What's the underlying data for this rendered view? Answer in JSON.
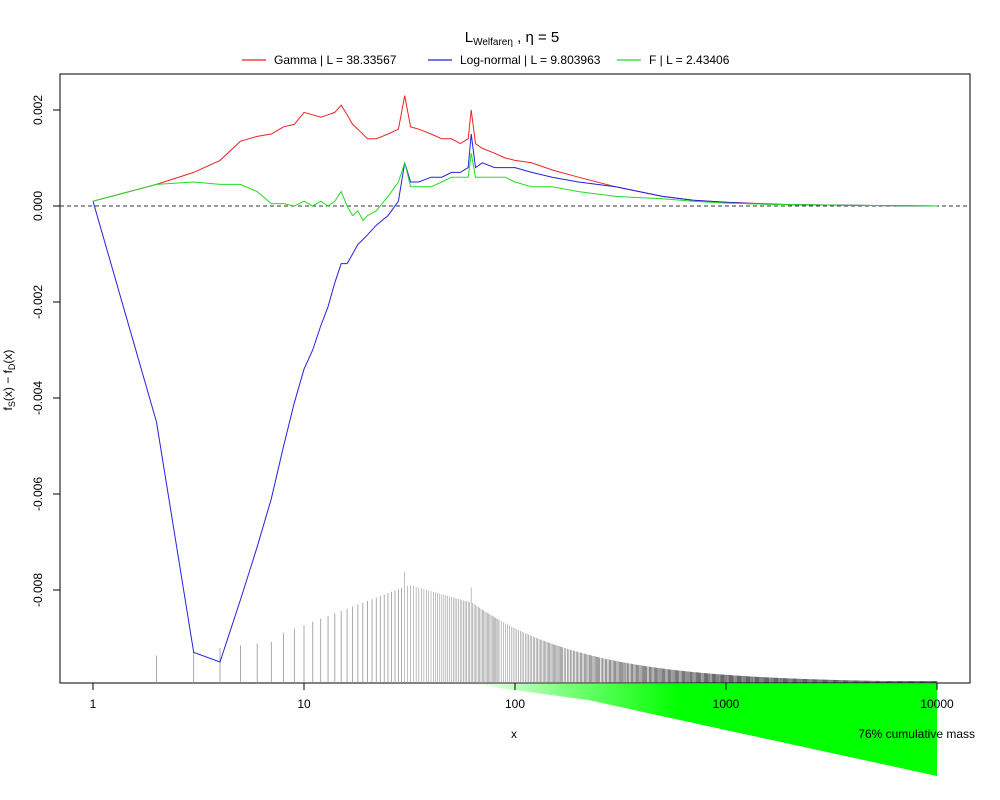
{
  "chart_data": {
    "type": "line",
    "title": "LWelfareη , η = 5",
    "title_main": "L",
    "title_sub": "Welfareη",
    "title_rest": " , η = 5",
    "xlabel": "x",
    "ylabel": "fS(x) − fD(x)",
    "ylabel_f1": "f",
    "ylabel_s1": "S",
    "ylabel_m": "(x) − f",
    "ylabel_s2": "D",
    "ylabel_e": "(x)",
    "x_scale": "log",
    "xlim": [
      1,
      10000
    ],
    "ylim": [
      -0.0099,
      0.0027
    ],
    "x_ticks": [
      1,
      10,
      100,
      1000,
      10000
    ],
    "x_tick_labels": [
      "1",
      "10",
      "100",
      "1000",
      "10000"
    ],
    "y_ticks": [
      -0.008,
      -0.006,
      -0.004,
      -0.002,
      0.0,
      0.002
    ],
    "y_tick_labels": [
      "-0.008",
      "-0.006",
      "-0.004",
      "-0.002",
      "0.000",
      "0.002"
    ],
    "reference_line": {
      "y": 0,
      "style": "dashed",
      "color": "#333333"
    },
    "legend_position": "top",
    "series": [
      {
        "name": "Gamma | L = 38.33567",
        "color": "#ee2222",
        "x": [
          1,
          2,
          3,
          4,
          5,
          6,
          7,
          8,
          9,
          10,
          11,
          12,
          13,
          14,
          15,
          16,
          17,
          18,
          20,
          22,
          25,
          28,
          30,
          32,
          35,
          40,
          45,
          50,
          55,
          60,
          62,
          65,
          70,
          80,
          90,
          100,
          120,
          150,
          200,
          300,
          500,
          700,
          1000,
          1500,
          2000,
          3000,
          5000,
          7000,
          10000
        ],
        "y": [
          0.0001,
          0.00045,
          0.0007,
          0.00095,
          0.00135,
          0.00145,
          0.0015,
          0.00165,
          0.0017,
          0.00195,
          0.0019,
          0.00185,
          0.0019,
          0.00195,
          0.0021,
          0.0019,
          0.0017,
          0.0016,
          0.0014,
          0.0014,
          0.0015,
          0.0016,
          0.0023,
          0.00165,
          0.0016,
          0.0015,
          0.0014,
          0.0014,
          0.0013,
          0.0014,
          0.002,
          0.0013,
          0.0012,
          0.0011,
          0.001,
          0.00095,
          0.0009,
          0.00075,
          0.0006,
          0.0004,
          0.0002,
          0.00012,
          8e-05,
          5e-05,
          3e-05,
          2e-05,
          1e-05,
          5e-06,
          0.0
        ]
      },
      {
        "name": "Log-normal | L = 9.803963",
        "color": "#2222dd",
        "x": [
          1,
          2,
          3,
          4,
          5,
          6,
          7,
          8,
          9,
          10,
          11,
          12,
          13,
          14,
          15,
          16,
          17,
          18,
          19,
          20,
          22,
          25,
          28,
          30,
          32,
          35,
          40,
          45,
          50,
          55,
          60,
          62,
          65,
          70,
          80,
          90,
          100,
          120,
          150,
          200,
          300,
          500,
          700,
          1000,
          1500,
          2000,
          3000,
          5000,
          7000,
          10000
        ],
        "y": [
          0.0001,
          -0.0045,
          -0.0093,
          -0.0095,
          -0.0082,
          -0.0071,
          -0.0061,
          -0.005,
          -0.0041,
          -0.0034,
          -0.003,
          -0.0025,
          -0.0021,
          -0.0016,
          -0.0012,
          -0.0012,
          -0.001,
          -0.0008,
          -0.0007,
          -0.0006,
          -0.0004,
          -0.0002,
          0.0001,
          0.0009,
          0.0005,
          0.0005,
          0.0006,
          0.0006,
          0.0007,
          0.0007,
          0.0008,
          0.0015,
          0.0008,
          0.0009,
          0.0008,
          0.0008,
          0.0008,
          0.0007,
          0.0006,
          0.0005,
          0.0004,
          0.0002,
          0.00012,
          8e-05,
          4e-05,
          3e-05,
          2e-05,
          1e-05,
          5e-06,
          0.0
        ]
      },
      {
        "name": "F | L = 2.43406",
        "color": "#22dd22",
        "x": [
          1,
          2,
          3,
          4,
          5,
          6,
          7,
          8,
          9,
          10,
          11,
          12,
          13,
          14,
          15,
          16,
          17,
          18,
          19,
          20,
          22,
          25,
          28,
          30,
          32,
          35,
          40,
          45,
          50,
          55,
          60,
          62,
          65,
          70,
          80,
          90,
          100,
          120,
          150,
          200,
          300,
          500,
          700,
          1000,
          1500,
          2000,
          3000,
          5000,
          7000,
          10000
        ],
        "y": [
          0.0001,
          0.00045,
          0.0005,
          0.00045,
          0.00045,
          0.0003,
          5e-05,
          5e-05,
          0.0,
          0.0001,
          0.0,
          0.0001,
          0.0,
          0.0001,
          0.0003,
          0.0,
          -0.0002,
          -0.0001,
          -0.0003,
          -0.0002,
          -0.0001,
          0.0002,
          0.0005,
          0.0009,
          0.0004,
          0.0004,
          0.0004,
          0.0005,
          0.0006,
          0.0006,
          0.0006,
          0.0011,
          0.0006,
          0.0006,
          0.0006,
          0.0006,
          0.0005,
          0.0004,
          0.0004,
          0.0003,
          0.0002,
          0.00015,
          0.0001,
          6e-05,
          4e-05,
          3e-05,
          2e-05,
          1e-05,
          5e-06,
          0.0
        ]
      }
    ],
    "annotation": "76% cumulative mass"
  }
}
